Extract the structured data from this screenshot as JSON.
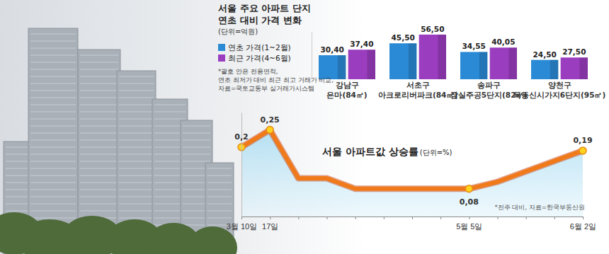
{
  "chart_data": [
    {
      "type": "bar",
      "title": "서울 주요 아파트 단지",
      "subtitle": "연초 대비 가격 변화",
      "annotations": [
        "(단위=억원)",
        "*괄호 안은 전용면적,",
        "연초 최저가 대비 최근 최고 거래가 비교,",
        "자료=국토교통부 실거래가시스템"
      ],
      "categories": [
        "강남구 은마(84㎡)",
        "서초구 아크로리버파크(84㎡)",
        "송파구 잠실주공5단지(82㎡)",
        "양천구 목동신시가지6단지(95㎡)"
      ],
      "series": [
        {
          "name": "연초 가격(1~2월)",
          "color": "#2b8ad6",
          "values": [
            30.4,
            45.5,
            34.55,
            24.5
          ],
          "value_labels": [
            "30,40",
            "45,50",
            "34,55",
            "24,50"
          ]
        },
        {
          "name": "최근 가격(4~6월)",
          "color": "#9a3dbf",
          "values": [
            37.4,
            56.5,
            40.05,
            27.5
          ],
          "value_labels": [
            "37,40",
            "56,50",
            "40,05",
            "27,50"
          ]
        }
      ],
      "ylim": [
        0,
        60
      ],
      "yticks": [],
      "data_labels": true,
      "tick_labels": "x",
      "legend": "upper left"
    },
    {
      "type": "line",
      "title": "서울 아파트값 상승률",
      "subtitle": "(단위=%)",
      "annotations": [
        "*전주 대비, 자료=한국부동산원"
      ],
      "categories": [
        "3월 10일",
        "17일",
        null,
        null,
        null,
        null,
        null,
        null,
        "5월 5일",
        null,
        null,
        null,
        "6월 2일"
      ],
      "values": [
        0.2,
        0.25,
        0.11,
        0.11,
        0.08,
        0.08,
        0.08,
        0.08,
        0.08,
        0.1,
        0.13,
        0.16,
        0.19
      ],
      "value_labels": [
        "0,2",
        "0,25",
        null,
        null,
        null,
        null,
        null,
        null,
        "0,08",
        null,
        null,
        null,
        "0,19"
      ],
      "color": "#f07a1a",
      "ylim": [
        0,
        0.3
      ],
      "yticks": [],
      "data_labels": true,
      "tick_labels": "x",
      "marker": "circle"
    }
  ]
}
